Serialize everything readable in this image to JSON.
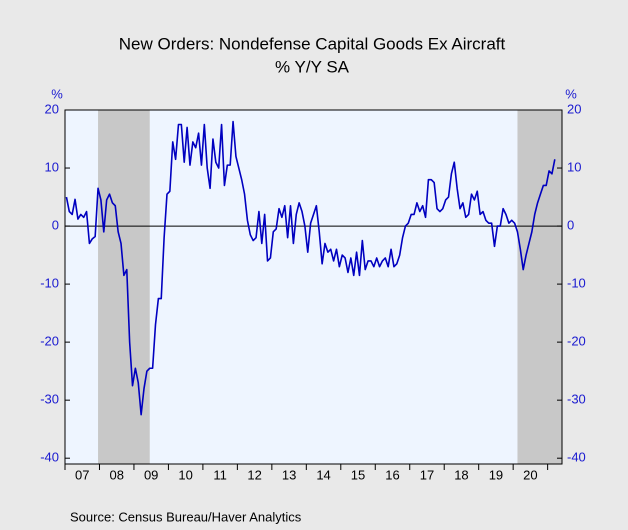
{
  "chart_data": {
    "type": "line",
    "title": "New Orders: Nondefense Capital Goods Ex Aircraft",
    "subtitle": "% Y/Y   SA",
    "y_label": "%",
    "y2_label": "%",
    "source": "Source:  Census Bureau/Haver Analytics",
    "categories": [
      null,
      null,
      null,
      null,
      null,
      null,
      "07",
      null,
      null,
      null,
      null,
      null,
      null,
      null,
      null,
      null,
      null,
      null,
      "08",
      null,
      null,
      null,
      null,
      null,
      null,
      null,
      null,
      null,
      null,
      null,
      "09",
      null,
      null,
      null,
      null,
      null,
      null,
      null,
      null,
      null,
      null,
      null,
      "10",
      null,
      null,
      null,
      null,
      null,
      null,
      null,
      null,
      null,
      null,
      null,
      "11",
      null,
      null,
      null,
      null,
      null,
      null,
      null,
      null,
      null,
      null,
      null,
      "12",
      null,
      null,
      null,
      null,
      null,
      null,
      null,
      null,
      null,
      null,
      null,
      "13",
      null,
      null,
      null,
      null,
      null,
      null,
      null,
      null,
      null,
      null,
      null,
      "14",
      null,
      null,
      null,
      null,
      null,
      null,
      null,
      null,
      null,
      null,
      null,
      "15",
      null,
      null,
      null,
      null,
      null,
      null,
      null,
      null,
      null,
      null,
      null,
      "16",
      null,
      null,
      null,
      null,
      null,
      null,
      null,
      null,
      null,
      null,
      null,
      "17",
      null,
      null,
      null,
      null,
      null,
      null,
      null,
      null,
      null,
      null,
      null,
      "18",
      null,
      null,
      null,
      null,
      null,
      null,
      null,
      null,
      null,
      null,
      null,
      "19",
      null,
      null,
      null,
      null,
      null,
      null,
      null,
      null,
      null,
      null,
      null,
      "20",
      null,
      null,
      null,
      null,
      null,
      null,
      null,
      null
    ],
    "series": [
      {
        "color": "#0000c0",
        "values": [
          5,
          2.5,
          2,
          4.6,
          1.2,
          2,
          1.5,
          2.5,
          -3,
          -2.2,
          -1.8,
          6.5,
          4.5,
          -1,
          4.5,
          5.5,
          4,
          3.5,
          -1,
          -3,
          -8.5,
          -7.5,
          -20,
          -27.5,
          -24.5,
          -27,
          -32.5,
          -28,
          -25,
          -24.5,
          -24.5,
          -17,
          -12.5,
          -12.5,
          -2,
          5.5,
          6,
          14.5,
          11.5,
          17.5,
          17.5,
          11,
          17,
          10.5,
          14.5,
          13.5,
          16,
          10.5,
          17.5,
          10,
          6.5,
          15,
          11,
          10,
          17.5,
          7,
          10.5,
          10.5,
          18,
          12,
          10,
          8,
          5.5,
          1,
          -1.5,
          -2.5,
          -2,
          2.5,
          -3,
          2,
          -6,
          -5.5,
          -1,
          -0.5,
          3,
          1.5,
          3.5,
          -2,
          3.5,
          -3,
          2,
          4,
          2.5,
          0,
          -4.5,
          0.5,
          2,
          3.5,
          -1,
          -6.5,
          -3,
          -4.5,
          -4,
          -6,
          -4,
          -7,
          -5,
          -5.5,
          -8,
          -5.5,
          -8.5,
          -4.5,
          -8.5,
          -2.5,
          -7.5,
          -6,
          -6,
          -7,
          -5.5,
          -7,
          -6,
          -5.5,
          -7,
          -4,
          -7,
          -6.5,
          -5,
          -2,
          0,
          0.5,
          2,
          2,
          4,
          2.5,
          3.5,
          1.5,
          8,
          8,
          7.5,
          3,
          2.5,
          3,
          4.5,
          5,
          9,
          11,
          6.5,
          3,
          4,
          1.5,
          2,
          5.5,
          4.5,
          6,
          2,
          2.5,
          1,
          0.5,
          0.5,
          -3.5,
          0,
          0,
          3,
          2,
          0.5,
          1,
          0.5,
          -1,
          -4,
          -7.5,
          -5,
          -3,
          -1,
          2,
          4,
          5.5,
          7,
          7,
          9.5,
          9,
          11.5
        ]
      }
    ],
    "recessions": [
      [
        11,
        29
      ],
      [
        157,
        170
      ]
    ],
    "recession_color": "#c8c8c8",
    "xlim": [
      -0.5,
      172.5
    ],
    "ylim": [
      -41,
      20
    ],
    "yticks": [
      20,
      10,
      0,
      -10,
      -20,
      -30,
      -40
    ],
    "y2lim": [
      -41,
      20
    ],
    "y2ticks": [
      20,
      10,
      0,
      -10,
      -20,
      -30,
      -40
    ]
  }
}
